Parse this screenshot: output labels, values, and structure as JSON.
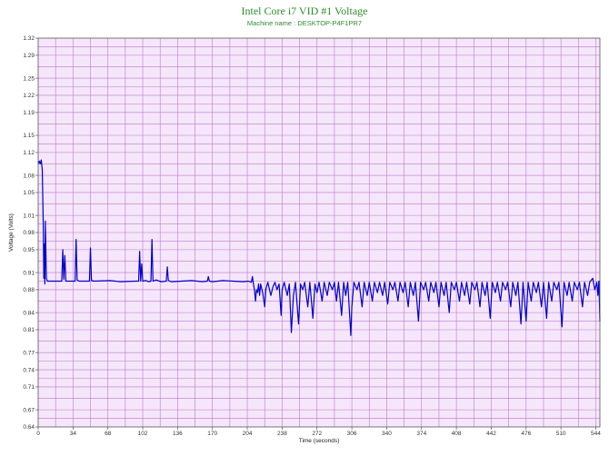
{
  "chart_data": {
    "type": "line",
    "title": "Intel Core i7 VID #1 Voltage",
    "subtitle": "Machine name : DESKTOP-P4F1PR7",
    "xlabel": "Time (seconds)",
    "ylabel": "Voltage (Volts)",
    "xlim": [
      0,
      548
    ],
    "ylim": [
      0.64,
      1.32
    ],
    "x_ticks": [
      0,
      34,
      68,
      102,
      136,
      170,
      204,
      238,
      272,
      306,
      340,
      374,
      408,
      442,
      476,
      510,
      544
    ],
    "y_ticks": [
      0.64,
      0.67,
      0.71,
      0.74,
      0.77,
      0.81,
      0.84,
      0.88,
      0.91,
      0.95,
      0.98,
      1.01,
      1.05,
      1.08,
      1.12,
      1.15,
      1.19,
      1.22,
      1.25,
      1.29,
      1.32
    ],
    "grid": true,
    "legend": "none",
    "colors": {
      "line": "#0000cc",
      "plot_background": "#f6e6fb",
      "grid": "#b77dc8",
      "title": "#2e8b2e"
    },
    "series": [
      {
        "points": [
          [
            0,
            1.1
          ],
          [
            1,
            1.105
          ],
          [
            2,
            1.1
          ],
          [
            3,
            1.107
          ],
          [
            4,
            1.09
          ],
          [
            5,
            0.99
          ],
          [
            5.5,
            0.9
          ],
          [
            6,
            0.96
          ],
          [
            6.5,
            0.89
          ],
          [
            7,
            1.0
          ],
          [
            8,
            0.9
          ],
          [
            9,
            0.895
          ],
          [
            12,
            0.895
          ],
          [
            20,
            0.895
          ],
          [
            23,
            0.895
          ],
          [
            24,
            0.95
          ],
          [
            25,
            0.898
          ],
          [
            26,
            0.94
          ],
          [
            27,
            0.895
          ],
          [
            30,
            0.895
          ],
          [
            36,
            0.895
          ],
          [
            37,
            0.968
          ],
          [
            38,
            0.897
          ],
          [
            40,
            0.895
          ],
          [
            48,
            0.895
          ],
          [
            50,
            0.895
          ],
          [
            51,
            0.953
          ],
          [
            52,
            0.896
          ],
          [
            55,
            0.895
          ],
          [
            70,
            0.896
          ],
          [
            80,
            0.894
          ],
          [
            95,
            0.895
          ],
          [
            98,
            0.895
          ],
          [
            99,
            0.947
          ],
          [
            100,
            0.895
          ],
          [
            101,
            0.925
          ],
          [
            102,
            0.895
          ],
          [
            105,
            0.896
          ],
          [
            108,
            0.894
          ],
          [
            110,
            0.895
          ],
          [
            111,
            0.968
          ],
          [
            112,
            0.895
          ],
          [
            115,
            0.897
          ],
          [
            120,
            0.894
          ],
          [
            125,
            0.895
          ],
          [
            126,
            0.92
          ],
          [
            127,
            0.896
          ],
          [
            130,
            0.894
          ],
          [
            140,
            0.895
          ],
          [
            150,
            0.896
          ],
          [
            160,
            0.894
          ],
          [
            165,
            0.895
          ],
          [
            166,
            0.903
          ],
          [
            167,
            0.895
          ],
          [
            170,
            0.894
          ],
          [
            180,
            0.896
          ],
          [
            190,
            0.895
          ],
          [
            200,
            0.894
          ],
          [
            205,
            0.895
          ],
          [
            208,
            0.893
          ],
          [
            209,
            0.903
          ],
          [
            210,
            0.89
          ],
          [
            211,
            0.88
          ],
          [
            212,
            0.86
          ],
          [
            213,
            0.88
          ],
          [
            214,
            0.875
          ],
          [
            215,
            0.89
          ],
          [
            216,
            0.87
          ],
          [
            217,
            0.89
          ],
          [
            219,
            0.875
          ],
          [
            221,
            0.85
          ],
          [
            222,
            0.88
          ],
          [
            224,
            0.893
          ],
          [
            227,
            0.87
          ],
          [
            229,
            0.885
          ],
          [
            231,
            0.893
          ],
          [
            233,
            0.88
          ],
          [
            235,
            0.89
          ],
          [
            237,
            0.835
          ],
          [
            238,
            0.88
          ],
          [
            240,
            0.893
          ],
          [
            243,
            0.87
          ],
          [
            245,
            0.89
          ],
          [
            247,
            0.805
          ],
          [
            249,
            0.87
          ],
          [
            251,
            0.893
          ],
          [
            254,
            0.82
          ],
          [
            256,
            0.89
          ],
          [
            258,
            0.88
          ],
          [
            260,
            0.893
          ],
          [
            263,
            0.85
          ],
          [
            265,
            0.893
          ],
          [
            268,
            0.83
          ],
          [
            270,
            0.89
          ],
          [
            272,
            0.875
          ],
          [
            274,
            0.893
          ],
          [
            277,
            0.86
          ],
          [
            279,
            0.893
          ],
          [
            282,
            0.87
          ],
          [
            284,
            0.893
          ],
          [
            287,
            0.88
          ],
          [
            289,
            0.893
          ],
          [
            291,
            0.86
          ],
          [
            293,
            0.893
          ],
          [
            296,
            0.835
          ],
          [
            298,
            0.893
          ],
          [
            300,
            0.87
          ],
          [
            302,
            0.893
          ],
          [
            305,
            0.8
          ],
          [
            306,
            0.85
          ],
          [
            308,
            0.893
          ],
          [
            311,
            0.88
          ],
          [
            313,
            0.893
          ],
          [
            316,
            0.85
          ],
          [
            318,
            0.893
          ],
          [
            321,
            0.87
          ],
          [
            323,
            0.893
          ],
          [
            326,
            0.86
          ],
          [
            328,
            0.893
          ],
          [
            331,
            0.875
          ],
          [
            333,
            0.893
          ],
          [
            336,
            0.87
          ],
          [
            338,
            0.893
          ],
          [
            341,
            0.855
          ],
          [
            343,
            0.893
          ],
          [
            346,
            0.88
          ],
          [
            348,
            0.893
          ],
          [
            351,
            0.86
          ],
          [
            353,
            0.893
          ],
          [
            356,
            0.875
          ],
          [
            358,
            0.893
          ],
          [
            361,
            0.85
          ],
          [
            363,
            0.893
          ],
          [
            366,
            0.87
          ],
          [
            368,
            0.893
          ],
          [
            371,
            0.825
          ],
          [
            373,
            0.893
          ],
          [
            376,
            0.88
          ],
          [
            378,
            0.893
          ],
          [
            381,
            0.86
          ],
          [
            383,
            0.893
          ],
          [
            386,
            0.875
          ],
          [
            388,
            0.893
          ],
          [
            391,
            0.85
          ],
          [
            393,
            0.893
          ],
          [
            396,
            0.87
          ],
          [
            398,
            0.893
          ],
          [
            401,
            0.84
          ],
          [
            403,
            0.893
          ],
          [
            406,
            0.88
          ],
          [
            408,
            0.893
          ],
          [
            411,
            0.86
          ],
          [
            413,
            0.893
          ],
          [
            416,
            0.87
          ],
          [
            418,
            0.893
          ],
          [
            421,
            0.855
          ],
          [
            423,
            0.893
          ],
          [
            426,
            0.88
          ],
          [
            428,
            0.893
          ],
          [
            431,
            0.85
          ],
          [
            433,
            0.893
          ],
          [
            436,
            0.87
          ],
          [
            438,
            0.893
          ],
          [
            441,
            0.83
          ],
          [
            443,
            0.893
          ],
          [
            446,
            0.875
          ],
          [
            448,
            0.893
          ],
          [
            451,
            0.86
          ],
          [
            453,
            0.893
          ],
          [
            456,
            0.88
          ],
          [
            458,
            0.893
          ],
          [
            461,
            0.85
          ],
          [
            463,
            0.893
          ],
          [
            466,
            0.87
          ],
          [
            468,
            0.893
          ],
          [
            471,
            0.82
          ],
          [
            473,
            0.893
          ],
          [
            476,
            0.825
          ],
          [
            478,
            0.893
          ],
          [
            481,
            0.86
          ],
          [
            483,
            0.893
          ],
          [
            486,
            0.875
          ],
          [
            488,
            0.893
          ],
          [
            491,
            0.85
          ],
          [
            493,
            0.893
          ],
          [
            496,
            0.83
          ],
          [
            498,
            0.893
          ],
          [
            501,
            0.86
          ],
          [
            503,
            0.893
          ],
          [
            506,
            0.88
          ],
          [
            508,
            0.893
          ],
          [
            511,
            0.815
          ],
          [
            513,
            0.893
          ],
          [
            516,
            0.87
          ],
          [
            518,
            0.893
          ],
          [
            521,
            0.86
          ],
          [
            523,
            0.893
          ],
          [
            526,
            0.88
          ],
          [
            528,
            0.893
          ],
          [
            531,
            0.85
          ],
          [
            533,
            0.893
          ],
          [
            536,
            0.87
          ],
          [
            538,
            0.893
          ],
          [
            541,
            0.9
          ],
          [
            543,
            0.88
          ],
          [
            545,
            0.893
          ],
          [
            546,
            0.87
          ],
          [
            547,
            0.895
          ],
          [
            548,
            0.825
          ]
        ]
      }
    ]
  }
}
